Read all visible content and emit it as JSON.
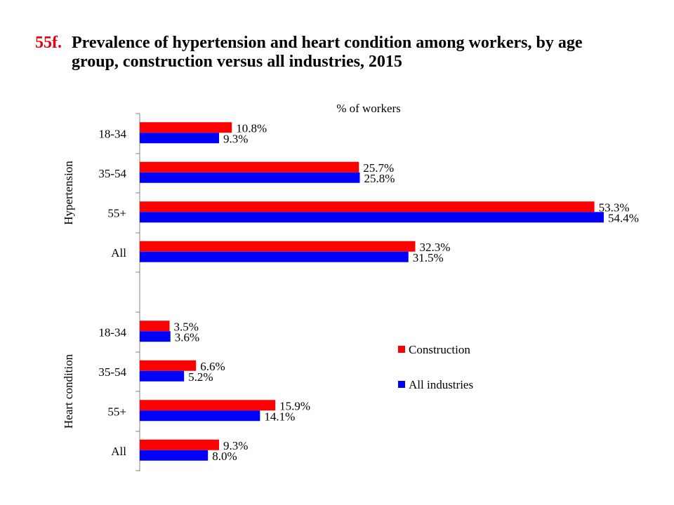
{
  "header": {
    "number": "55f.",
    "title_line1": "Prevalence of hypertension and heart condition among workers, by age",
    "title_line2": "group, construction versus all industries, 2015"
  },
  "chart_data": {
    "type": "bar",
    "orientation": "horizontal",
    "axis_label": "% of workers",
    "xlim": [
      0,
      60
    ],
    "grid": false,
    "legend_position": "right",
    "colors": {
      "Construction": "#ff0000",
      "All industries": "#0000ff"
    },
    "groups": [
      {
        "name": "Hypertension",
        "categories": [
          "18-34",
          "35-54",
          "55+",
          "All"
        ],
        "series": [
          {
            "name": "Construction",
            "values": [
              10.8,
              25.7,
              53.3,
              32.3
            ],
            "labels": [
              "10.8%",
              "25.7%",
              "53.3%",
              "32.3%"
            ]
          },
          {
            "name": "All industries",
            "values": [
              9.3,
              25.8,
              54.4,
              31.5
            ],
            "labels": [
              "9.3%",
              "25.8%",
              "54.4%",
              "31.5%"
            ]
          }
        ]
      },
      {
        "name": "Heart condition",
        "categories": [
          "18-34",
          "35-54",
          "55+",
          "All"
        ],
        "series": [
          {
            "name": "Construction",
            "values": [
              3.5,
              6.6,
              15.9,
              9.3
            ],
            "labels": [
              "3.5%",
              "6.6%",
              "15.9%",
              "9.3%"
            ]
          },
          {
            "name": "All industries",
            "values": [
              3.6,
              5.2,
              14.1,
              8.0
            ],
            "labels": [
              "3.6%",
              "5.2%",
              "14.1%",
              "8.0%"
            ]
          }
        ]
      }
    ],
    "legend": [
      "Construction",
      "All industries"
    ]
  }
}
